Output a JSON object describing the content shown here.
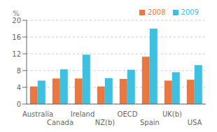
{
  "chart_data": {
    "type": "bar",
    "ylabel": "%",
    "categories": [
      "Australia",
      "Canada",
      "Ireland",
      "NZ(b)",
      "OECD",
      "Spain",
      "UK(b)",
      "USA"
    ],
    "series": [
      {
        "name": "2008",
        "color": "#E87840",
        "values": [
          4.2,
          6.1,
          6.1,
          4.2,
          6.0,
          11.3,
          5.6,
          5.8
        ]
      },
      {
        "name": "2009",
        "color": "#40C0E0",
        "values": [
          5.6,
          8.3,
          11.8,
          6.2,
          8.2,
          18.0,
          7.6,
          9.3
        ]
      }
    ],
    "ylim": [
      0,
      20
    ],
    "yticks": [
      0,
      4,
      8,
      12,
      16,
      20
    ],
    "grid": true,
    "legend": "upper right"
  }
}
